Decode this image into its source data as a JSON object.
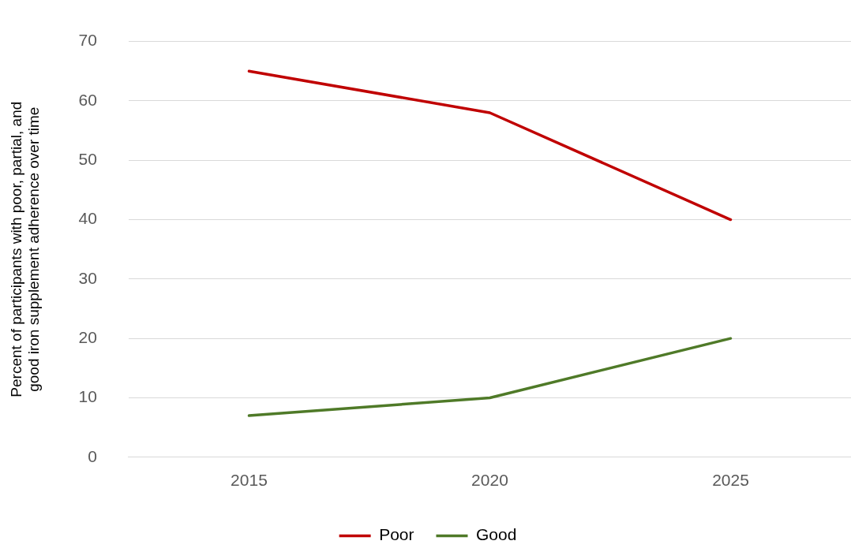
{
  "chart_data": {
    "type": "line",
    "ylabel": "Percent of participants with poor, partial, and good iron supplement adherence over time",
    "categories": [
      "2015",
      "2020",
      "2025"
    ],
    "series": [
      {
        "name": "Poor",
        "color": "#c00000",
        "values": [
          65,
          58,
          40
        ]
      },
      {
        "name": "Good",
        "color": "#4f7a28",
        "values": [
          7,
          10,
          20
        ]
      }
    ],
    "ylim": [
      0,
      70
    ],
    "yticks": [
      0,
      10,
      20,
      30,
      40,
      50,
      60,
      70
    ],
    "grid": "y",
    "legend": "bottom",
    "marker": "none",
    "line_style": "solid"
  }
}
